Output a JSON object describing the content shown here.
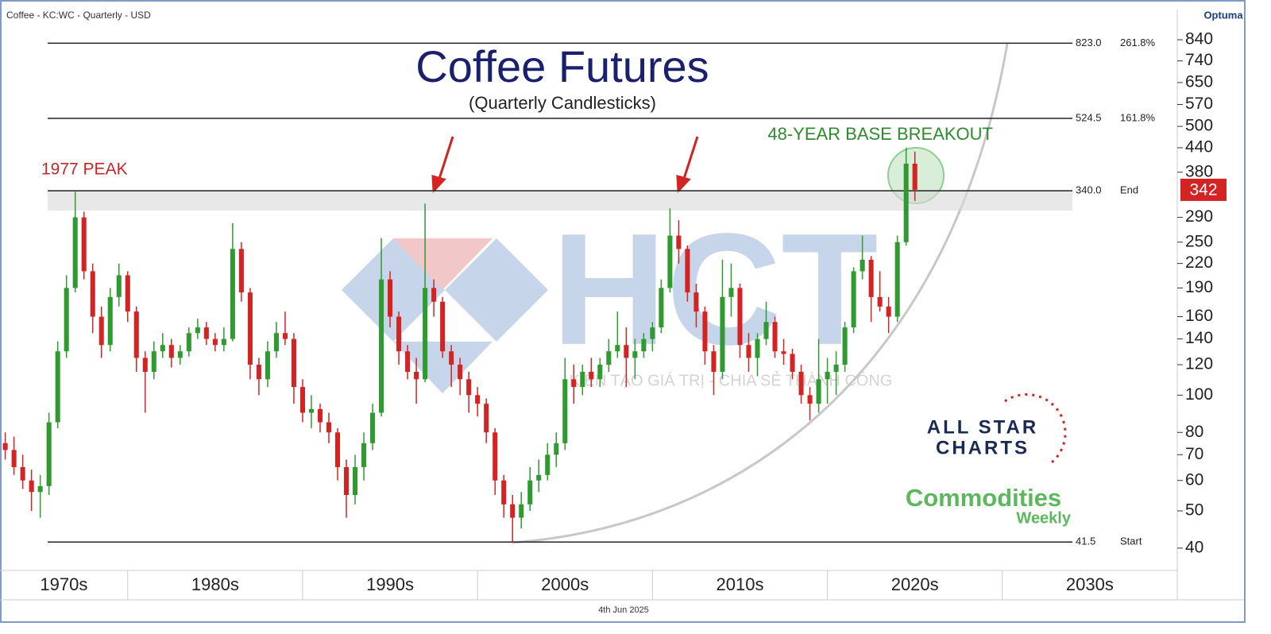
{
  "chart_data": {
    "type": "candlestick",
    "header": "Coffee - KC:WC - Quarterly - USD",
    "brand": "Optuma",
    "date": "4th Jun 2025",
    "title": "Coffee Futures",
    "subtitle": "(Quarterly Candlesticks)",
    "annotations": {
      "peak": "1977 PEAK",
      "breakout": "48-YEAR BASE BREAKOUT"
    },
    "logos": {
      "allstar_1": "ALL STAR",
      "allstar_2": "CHARTS",
      "commodities": "Commodities",
      "weekly": "Weekly"
    },
    "watermark": {
      "mark": "HCT",
      "tagline": "KIẾN TẠO GIÁ TRỊ - CHIA SẺ THÀNH CÔNG"
    },
    "log_scale": true,
    "up_color": "#2f9a2f",
    "down_color": "#d42323",
    "x": [
      1973.0,
      1973.5,
      1974.0,
      1974.5,
      1975.0,
      1975.5,
      1976.0,
      1976.5,
      1977.0,
      1977.5,
      1978.0,
      1978.5,
      1979.0,
      1979.5,
      1980.0,
      1980.5,
      1981.0,
      1981.5,
      1982.0,
      1982.5,
      1983.0,
      1983.5,
      1984.0,
      1984.5,
      1985.0,
      1985.5,
      1986.0,
      1986.5,
      1987.0,
      1987.5,
      1988.0,
      1988.5,
      1989.0,
      1989.5,
      1990.0,
      1990.5,
      1991.0,
      1991.5,
      1992.0,
      1992.5,
      1993.0,
      1993.5,
      1994.0,
      1994.5,
      1995.0,
      1995.5,
      1996.0,
      1996.5,
      1997.0,
      1997.5,
      1998.0,
      1998.5,
      1999.0,
      1999.5,
      2000.0,
      2000.5,
      2001.0,
      2001.5,
      2002.0,
      2002.5,
      2003.0,
      2003.5,
      2004.0,
      2004.5,
      2005.0,
      2005.5,
      2006.0,
      2006.5,
      2007.0,
      2007.5,
      2008.0,
      2008.5,
      2009.0,
      2009.5,
      2010.0,
      2010.5,
      2011.0,
      2011.5,
      2012.0,
      2012.5,
      2013.0,
      2013.5,
      2014.0,
      2014.5,
      2015.0,
      2015.5,
      2016.0,
      2016.5,
      2017.0,
      2017.5,
      2018.0,
      2018.5,
      2019.0,
      2019.5,
      2020.0,
      2020.5,
      2021.0,
      2021.5,
      2022.0,
      2022.5,
      2023.0,
      2023.5,
      2024.0,
      2024.5,
      2025.0
    ],
    "open": [
      75,
      72,
      65,
      60,
      56,
      58,
      85,
      130,
      190,
      290,
      210,
      160,
      135,
      180,
      205,
      165,
      125,
      115,
      130,
      135,
      125,
      130,
      145,
      150,
      140,
      135,
      140,
      240,
      185,
      120,
      110,
      130,
      145,
      140,
      105,
      90,
      92,
      85,
      80,
      65,
      55,
      65,
      75,
      90,
      200,
      160,
      130,
      115,
      110,
      190,
      175,
      130,
      120,
      110,
      100,
      95,
      80,
      60,
      52,
      48,
      52,
      60,
      62,
      70,
      75,
      110,
      105,
      115,
      110,
      120,
      130,
      135,
      125,
      130,
      140,
      150,
      190,
      260,
      240,
      185,
      165,
      130,
      115,
      180,
      190,
      135,
      125,
      140,
      155,
      130,
      128,
      115,
      100,
      95,
      110,
      115,
      120,
      150,
      210,
      225,
      180,
      170,
      160,
      250,
      400
    ],
    "high": [
      80,
      78,
      70,
      64,
      62,
      90,
      138,
      205,
      338,
      300,
      220,
      170,
      190,
      220,
      210,
      170,
      130,
      138,
      145,
      140,
      135,
      150,
      158,
      155,
      145,
      150,
      280,
      250,
      190,
      125,
      138,
      155,
      165,
      145,
      110,
      100,
      95,
      90,
      82,
      68,
      70,
      80,
      95,
      256,
      210,
      165,
      135,
      125,
      315,
      200,
      180,
      135,
      125,
      115,
      105,
      98,
      82,
      62,
      55,
      56,
      65,
      68,
      75,
      80,
      125,
      120,
      120,
      125,
      125,
      140,
      165,
      150,
      140,
      145,
      155,
      200,
      306,
      285,
      245,
      195,
      170,
      135,
      225,
      220,
      195,
      145,
      145,
      175,
      160,
      140,
      132,
      120,
      105,
      140,
      125,
      130,
      155,
      215,
      260,
      230,
      210,
      180,
      260,
      440,
      430
    ],
    "low": [
      68,
      62,
      57,
      50,
      48,
      55,
      82,
      125,
      185,
      200,
      145,
      125,
      130,
      170,
      155,
      115,
      90,
      110,
      125,
      118,
      120,
      126,
      140,
      135,
      130,
      130,
      138,
      175,
      110,
      100,
      105,
      125,
      135,
      95,
      85,
      82,
      80,
      75,
      60,
      48,
      52,
      60,
      72,
      88,
      150,
      120,
      110,
      95,
      108,
      160,
      125,
      105,
      100,
      90,
      88,
      75,
      55,
      48,
      41.5,
      45,
      50,
      56,
      60,
      65,
      72,
      95,
      100,
      105,
      105,
      115,
      125,
      105,
      110,
      125,
      130,
      145,
      185,
      220,
      175,
      150,
      120,
      100,
      110,
      160,
      125,
      115,
      112,
      135,
      125,
      120,
      110,
      95,
      86,
      90,
      95,
      100,
      115,
      145,
      200,
      155,
      165,
      145,
      155,
      245,
      320
    ],
    "close": [
      72,
      65,
      60,
      56,
      58,
      85,
      130,
      190,
      290,
      210,
      160,
      135,
      180,
      205,
      165,
      125,
      115,
      130,
      135,
      125,
      130,
      145,
      150,
      140,
      135,
      140,
      240,
      185,
      120,
      110,
      130,
      145,
      140,
      105,
      90,
      92,
      85,
      80,
      65,
      55,
      65,
      75,
      90,
      200,
      160,
      130,
      115,
      110,
      190,
      175,
      130,
      120,
      110,
      100,
      95,
      80,
      60,
      52,
      48,
      52,
      60,
      62,
      70,
      75,
      110,
      105,
      115,
      110,
      120,
      130,
      135,
      125,
      130,
      140,
      150,
      190,
      260,
      240,
      185,
      165,
      130,
      115,
      180,
      190,
      135,
      125,
      140,
      155,
      130,
      128,
      115,
      100,
      95,
      110,
      115,
      120,
      150,
      210,
      225,
      180,
      170,
      160,
      250,
      400,
      342
    ],
    "xlim": [
      1972.7,
      2040
    ],
    "xticks": [
      {
        "value": 1970,
        "label": "1970s"
      },
      {
        "value": 1980,
        "label": "1980s"
      },
      {
        "value": 1990,
        "label": "1990s"
      },
      {
        "value": 2000,
        "label": "2000s"
      },
      {
        "value": 2010,
        "label": "2010s"
      },
      {
        "value": 2020,
        "label": "2020s"
      },
      {
        "value": 2030,
        "label": "2030s"
      }
    ],
    "ylim": [
      35,
      1000
    ],
    "yticks": [
      40,
      50,
      60,
      70,
      80,
      100,
      120,
      140,
      160,
      190,
      220,
      250,
      290,
      380,
      440,
      500,
      570,
      650,
      740,
      840
    ],
    "levels": [
      {
        "value": 823.0,
        "label": "823.0",
        "tag": "261.8%"
      },
      {
        "value": 524.5,
        "label": "524.5",
        "tag": "161.8%"
      },
      {
        "value": 340.0,
        "label": "340.0",
        "tag": "End"
      },
      {
        "value": 41.5,
        "label": "41.5",
        "tag": "Start"
      }
    ],
    "base_zone": [
      302,
      340
    ],
    "last_price": 342
  }
}
